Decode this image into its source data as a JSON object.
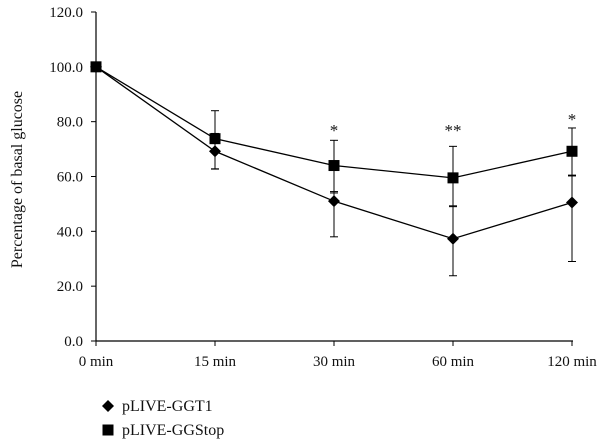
{
  "chart_data": {
    "type": "line",
    "title": "",
    "xlabel": "",
    "ylabel": "Percentage of basal glucose",
    "categories": [
      "0 min",
      "15 min",
      "30 min",
      "60 min",
      "120 min"
    ],
    "ylim": [
      0,
      120
    ],
    "yticks": [
      "0.0",
      "20.0",
      "40.0",
      "60.0",
      "80.0",
      "100.0",
      "120.0"
    ],
    "ytick_values": [
      0,
      20,
      40,
      60,
      80,
      100,
      120
    ],
    "grid": false,
    "legend_position": "bottom-left",
    "series": [
      {
        "name": "pLIVE-GGT1",
        "marker": "diamond",
        "color": "#000000",
        "values": [
          100,
          69.2,
          51.0,
          37.3,
          50.5
        ],
        "error_upper": [
          0,
          6.5,
          3.5,
          12.0,
          10.0
        ],
        "error_lower": [
          0,
          6.5,
          13.0,
          13.5,
          21.5
        ]
      },
      {
        "name": "pLIVE-GGStop",
        "marker": "square",
        "color": "#000000",
        "values": [
          100,
          73.8,
          64.0,
          59.5,
          69.2
        ],
        "error_upper": [
          0,
          10.2,
          9.2,
          11.5,
          8.5
        ],
        "error_lower": [
          0,
          11.0,
          10.0,
          10.5,
          9.0
        ]
      }
    ],
    "annotations": [
      {
        "category_index": 2,
        "text": "*",
        "y": 77
      },
      {
        "category_index": 3,
        "text": "**",
        "y": 77
      },
      {
        "category_index": 4,
        "text": "*",
        "y": 81
      }
    ]
  }
}
